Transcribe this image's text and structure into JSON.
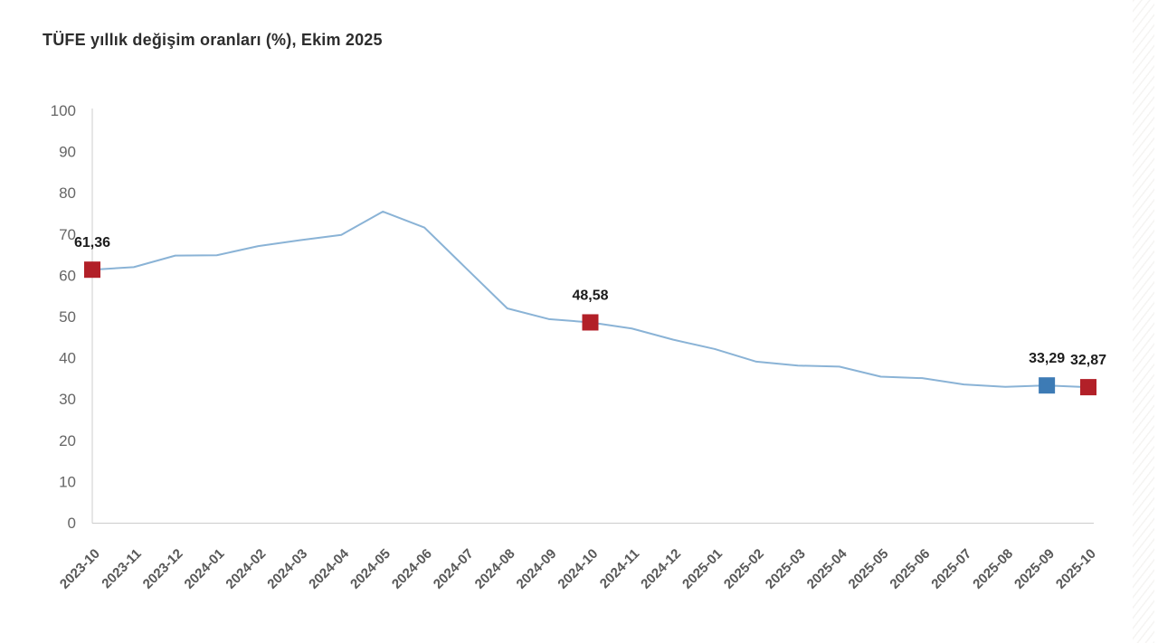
{
  "title": "TÜFE yıllık değişim oranları (%), Ekim 2025",
  "chart_data": {
    "type": "line",
    "title": "TÜFE yıllık değişim oranları (%), Ekim 2025",
    "x": [
      "2023-10",
      "2023-11",
      "2023-12",
      "2024-01",
      "2024-02",
      "2024-03",
      "2024-04",
      "2024-05",
      "2024-06",
      "2024-07",
      "2024-08",
      "2024-09",
      "2024-10",
      "2024-11",
      "2024-12",
      "2025-01",
      "2025-02",
      "2025-03",
      "2025-04",
      "2025-05",
      "2025-06",
      "2025-07",
      "2025-08",
      "2025-09",
      "2025-10"
    ],
    "values": [
      61.36,
      61.98,
      64.77,
      64.86,
      67.07,
      68.5,
      69.8,
      75.45,
      71.6,
      61.78,
      51.97,
      49.38,
      48.58,
      47.09,
      44.38,
      42.12,
      39.05,
      38.1,
      37.86,
      35.41,
      35.05,
      33.52,
      32.95,
      33.29,
      32.87
    ],
    "xlabel": "",
    "ylabel": "",
    "ylim": [
      0,
      100
    ],
    "y_ticks": [
      0,
      10,
      20,
      30,
      40,
      50,
      60,
      70,
      80,
      90,
      100
    ],
    "grid": false,
    "legend": false,
    "line_color": "#8ab3d6",
    "highlighted_points": [
      {
        "month": "2023-10",
        "value": 61.36,
        "label": "61,36",
        "color": "#b22028"
      },
      {
        "month": "2024-10",
        "value": 48.58,
        "label": "48,58",
        "color": "#b22028"
      },
      {
        "month": "2025-09",
        "value": 33.29,
        "label": "33,29",
        "color": "#3d7bb5"
      },
      {
        "month": "2025-10",
        "value": 32.87,
        "label": "32,87",
        "color": "#b22028"
      }
    ]
  }
}
